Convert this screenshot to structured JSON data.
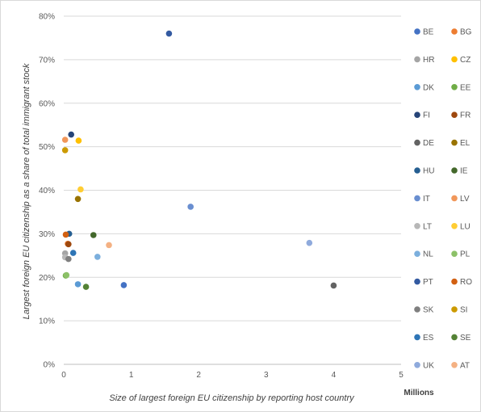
{
  "chart_data": {
    "type": "scatter",
    "xlabel": "Size of largest foreign EU citizenship by reporting host country",
    "ylabel": "Largest foreign EU citizenship as a share of total immigrant stock",
    "x_units_label": "Millions",
    "xlim": [
      0,
      5
    ],
    "ylim": [
      0,
      0.8
    ],
    "x_ticks": [
      "0",
      "1",
      "2",
      "3",
      "4",
      "5"
    ],
    "y_ticks": [
      "0%",
      "10%",
      "20%",
      "30%",
      "40%",
      "50%",
      "60%",
      "70%",
      "80%"
    ],
    "grid": "horizontal",
    "legend_position": "right",
    "series": [
      {
        "name": "BE",
        "color": "#4472c4",
        "x": 0.89,
        "y": 0.182
      },
      {
        "name": "BG",
        "color": "#ed7d31",
        "x": 0.06,
        "y": 0.277
      },
      {
        "name": "HR",
        "color": "#a5a5a5",
        "x": 0.02,
        "y": 0.255
      },
      {
        "name": "CZ",
        "color": "#ffc000",
        "x": 0.22,
        "y": 0.514
      },
      {
        "name": "DK",
        "color": "#5b9bd5",
        "x": 0.21,
        "y": 0.184
      },
      {
        "name": "EE",
        "color": "#70ad47",
        "x": 0.03,
        "y": 0.204
      },
      {
        "name": "FI",
        "color": "#264478",
        "x": 0.11,
        "y": 0.528
      },
      {
        "name": "FR",
        "color": "#9e480e",
        "x": 0.07,
        "y": 0.276
      },
      {
        "name": "DE",
        "color": "#636363",
        "x": 4.0,
        "y": 0.181
      },
      {
        "name": "EL",
        "color": "#997300",
        "x": 0.21,
        "y": 0.38
      },
      {
        "name": "HU",
        "color": "#255e91",
        "x": 0.08,
        "y": 0.3
      },
      {
        "name": "IE",
        "color": "#43682b",
        "x": 0.44,
        "y": 0.297
      },
      {
        "name": "IT",
        "color": "#698ed0",
        "x": 1.88,
        "y": 0.362
      },
      {
        "name": "LV",
        "color": "#f1975a",
        "x": 0.02,
        "y": 0.516
      },
      {
        "name": "LT",
        "color": "#b7b7b7",
        "x": 0.02,
        "y": 0.246
      },
      {
        "name": "LU",
        "color": "#ffcd33",
        "x": 0.25,
        "y": 0.402
      },
      {
        "name": "NL",
        "color": "#7cafdd",
        "x": 0.5,
        "y": 0.247
      },
      {
        "name": "PL",
        "color": "#8cc168",
        "x": 0.04,
        "y": 0.205
      },
      {
        "name": "PT",
        "color": "#335aa1",
        "x": 1.56,
        "y": 0.76
      },
      {
        "name": "RO",
        "color": "#d26012",
        "x": 0.03,
        "y": 0.298
      },
      {
        "name": "SK",
        "color": "#7f7f7f",
        "x": 0.07,
        "y": 0.242
      },
      {
        "name": "SI",
        "color": "#cc9a00",
        "x": 0.02,
        "y": 0.492
      },
      {
        "name": "ES",
        "color": "#2e75b6",
        "x": 0.14,
        "y": 0.256
      },
      {
        "name": "SE",
        "color": "#548235",
        "x": 0.33,
        "y": 0.178
      },
      {
        "name": "UK",
        "color": "#8faadc",
        "x": 3.64,
        "y": 0.279
      },
      {
        "name": "AT",
        "color": "#f4b183",
        "x": 0.67,
        "y": 0.274
      }
    ]
  }
}
